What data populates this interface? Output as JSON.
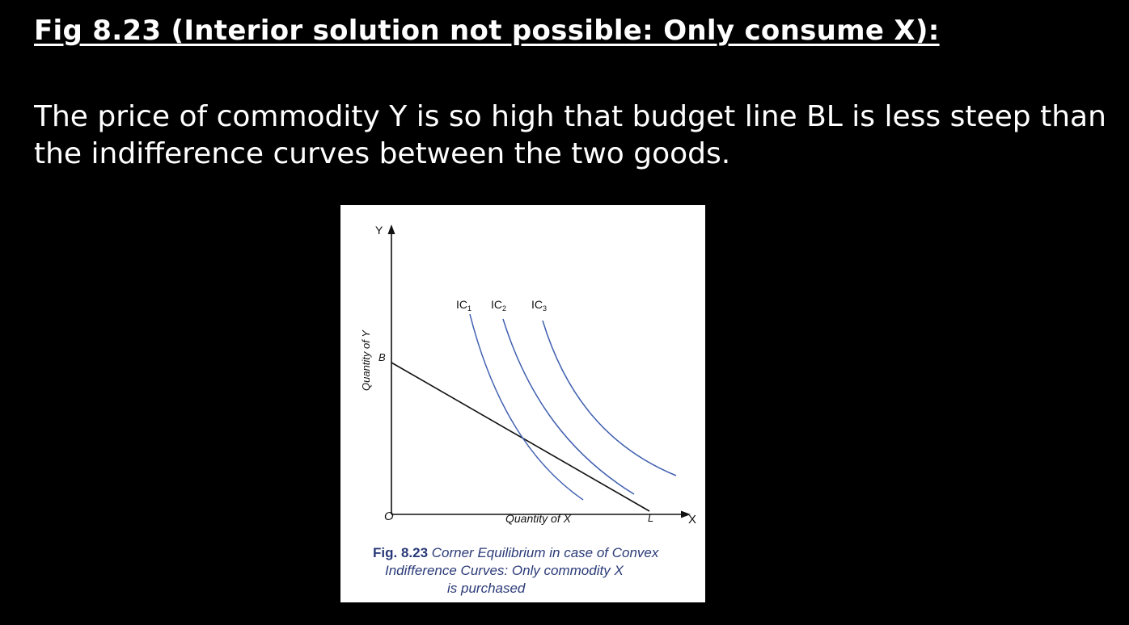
{
  "slide": {
    "title": "Fig 8.23  (Interior solution not possible: Only consume X):",
    "body_line1": "The price of commodity Y is so high that budget line BL is less steep than",
    "body_line2": "the indifference curves between the two goods."
  },
  "figure": {
    "axis_y_label": "Y",
    "axis_x_label": "X",
    "origin_label": "O",
    "y_axis_title": "Quantity of Y",
    "x_axis_title": "Quantity of X",
    "point_b": "B",
    "point_l": "L",
    "ic_prefix": "IC",
    "ic1_sub": "1",
    "ic2_sub": "2",
    "ic3_sub": "3",
    "curve_color": "#3f5fb0",
    "caption_number": "Fig. 8.23",
    "caption_line1": " Corner Equilibrium in case of Convex",
    "caption_line2": "Indifference Curves: Only commodity X",
    "caption_line3": "is purchased"
  }
}
